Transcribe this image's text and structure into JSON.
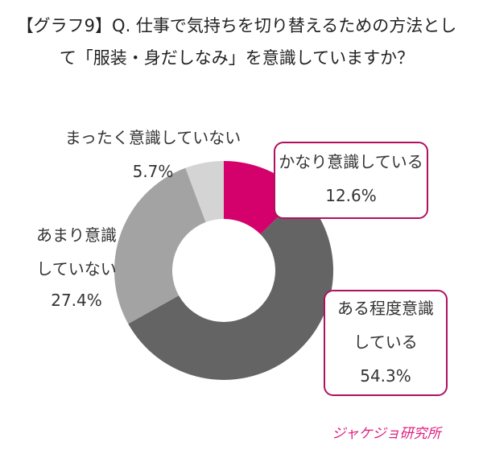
{
  "chart_data": {
    "type": "donut",
    "title": "【グラフ9】Q. 仕事で気持ちを切り替えるための方法として「服装・身だしなみ」を意識していますか？",
    "categories": [
      "かなり意識している",
      "ある程度意識している",
      "あまり意識していない",
      "まったく意識していない"
    ],
    "values": [
      12.6,
      54.3,
      27.4,
      5.7
    ],
    "value_labels": [
      "12.6%",
      "54.3%",
      "27.4%",
      "5.7%"
    ],
    "colors": [
      "#d4006b",
      "#646464",
      "#a3a3a3",
      "#d4d4d4"
    ]
  },
  "logo": "ジャケジョ研究所"
}
